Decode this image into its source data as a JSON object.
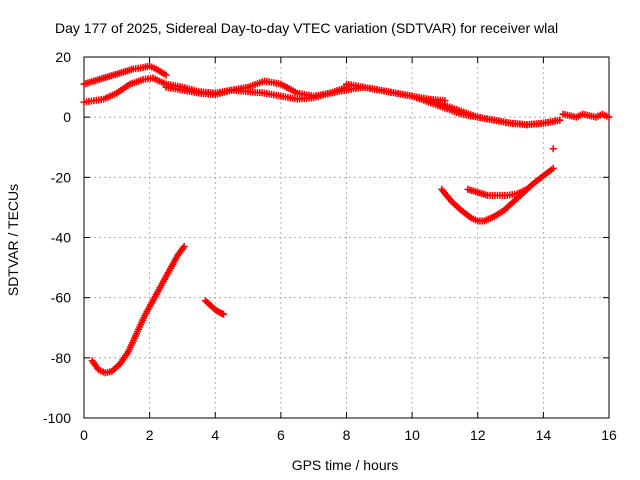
{
  "chart_data": {
    "type": "scatter",
    "title": "Day 177 of 2025, Sidereal Day-to-day VTEC variation (SDTVAR) for receiver wlal",
    "xlabel": "GPS time / hours",
    "ylabel": "SDTVAR / TECUs",
    "xlim": [
      0,
      16
    ],
    "ylim": [
      -100,
      20
    ],
    "xticks": [
      "0",
      "2",
      "4",
      "6",
      "8",
      "10",
      "12",
      "14",
      "16"
    ],
    "yticks": [
      "20",
      "0",
      "-20",
      "-40",
      "-60",
      "-80",
      "-100"
    ],
    "grid": true,
    "marker": "+",
    "color": "#ff0000",
    "series": [
      {
        "name": "upper-band-a",
        "x": [
          0,
          0.3,
          0.6,
          0.9,
          1.2,
          1.5,
          1.8,
          2.0,
          2.2,
          2.5
        ],
        "y": [
          11,
          12,
          13,
          14,
          15,
          16,
          16.5,
          17,
          16,
          14
        ]
      },
      {
        "name": "upper-band-b",
        "x": [
          0,
          0.3,
          0.6,
          1.0,
          1.4,
          1.8,
          2.1,
          2.5,
          3.0,
          3.5,
          4.0,
          4.5
        ],
        "y": [
          5,
          5.5,
          6,
          8,
          11,
          12.5,
          13,
          11,
          10,
          8.5,
          8,
          9
        ]
      },
      {
        "name": "upper-band-c",
        "x": [
          2.5,
          3.0,
          3.5,
          4.0,
          4.5,
          5.0,
          5.5,
          6.0,
          6.5,
          7.0,
          7.5,
          8.0
        ],
        "y": [
          10,
          9,
          8,
          7.5,
          9,
          10,
          12,
          11,
          8,
          7,
          8,
          10
        ]
      },
      {
        "name": "upper-band-d",
        "x": [
          4.5,
          5.0,
          5.5,
          6.0,
          6.5,
          7.0,
          7.5,
          8.0,
          8.5,
          9.0,
          9.5,
          10.0,
          10.5,
          11.0
        ],
        "y": [
          9,
          8.5,
          8,
          7,
          6,
          6.5,
          8,
          9,
          10,
          9,
          8,
          7,
          6,
          5.5
        ]
      },
      {
        "name": "upper-band-e",
        "x": [
          8.0,
          8.5,
          9.0,
          9.5,
          10.0,
          10.5,
          11.0,
          11.5,
          12.0,
          12.5,
          13.0,
          13.5,
          14.0,
          14.5
        ],
        "y": [
          11,
          10,
          9,
          8,
          7,
          5,
          3,
          1,
          0,
          -1,
          -2,
          -2.5,
          -2,
          -1
        ]
      },
      {
        "name": "upper-band-f",
        "x": [
          10.5,
          11.0,
          11.5,
          12.0,
          12.5,
          13.0,
          13.5,
          14.0,
          14.5
        ],
        "y": [
          6,
          4,
          2,
          0,
          -1,
          -2,
          -2.5,
          -2,
          -1
        ]
      },
      {
        "name": "upper-band-g",
        "x": [
          14.6,
          14.8,
          15.0,
          15.2,
          15.4,
          15.6,
          15.8,
          16.0
        ],
        "y": [
          1,
          0.5,
          0,
          1,
          0.5,
          0,
          1,
          0
        ]
      },
      {
        "name": "lower-arc",
        "x": [
          0.25,
          0.45,
          0.65,
          0.85,
          1.1,
          1.35,
          1.6,
          1.85,
          2.1,
          2.35,
          2.6,
          2.85,
          3.05
        ],
        "y": [
          -81,
          -84,
          -85,
          -84.5,
          -82,
          -78,
          -72,
          -66,
          -61,
          -56,
          -51,
          -46,
          -43
        ]
      },
      {
        "name": "segment-4h",
        "x": [
          3.7,
          3.85,
          4.0,
          4.15,
          4.25
        ],
        "y": [
          -61,
          -62.5,
          -64,
          -65,
          -65.5
        ]
      },
      {
        "name": "right-arc",
        "x": [
          10.9,
          11.2,
          11.5,
          11.8,
          12.0,
          12.2,
          12.5,
          12.8,
          13.1,
          13.4,
          13.7,
          14.0,
          14.3
        ],
        "y": [
          -24,
          -28,
          -31,
          -33.5,
          -34.5,
          -34.5,
          -33,
          -31,
          -28,
          -25,
          -22,
          -19.5,
          -17
        ]
      },
      {
        "name": "right-upper-arc",
        "x": [
          11.7,
          12.0,
          12.3,
          12.6,
          12.9,
          13.2,
          13.5
        ],
        "y": [
          -24,
          -25,
          -26,
          -26,
          -26,
          -25.5,
          -24
        ]
      },
      {
        "name": "outlier",
        "x": [
          14.3
        ],
        "y": [
          -10.5
        ]
      }
    ]
  }
}
